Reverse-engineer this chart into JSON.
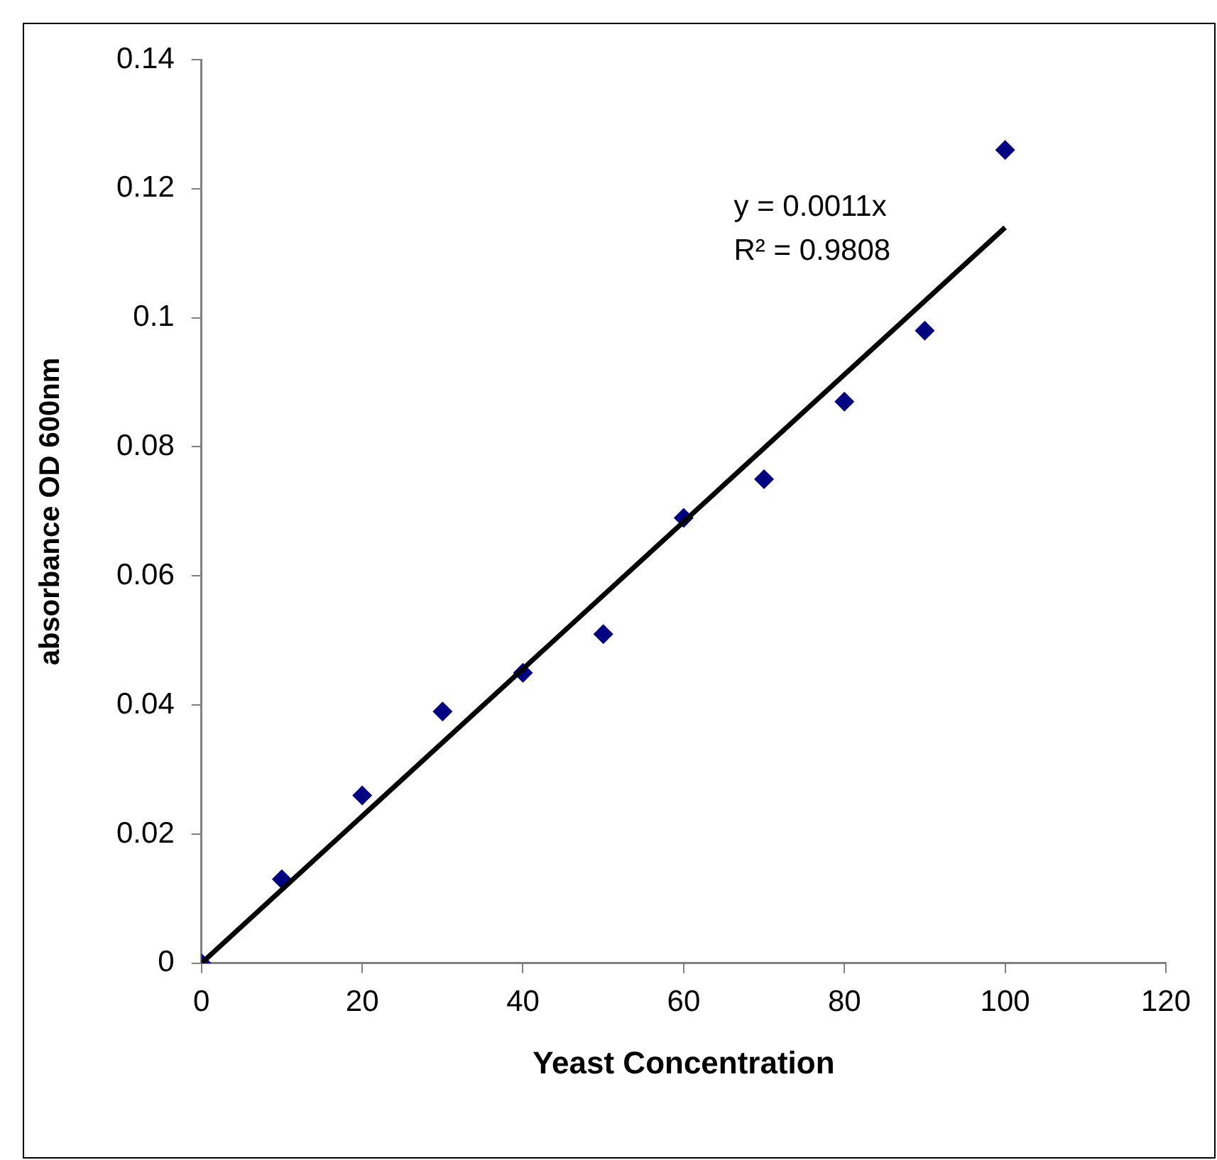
{
  "chart_data": {
    "type": "scatter",
    "xlabel": "Yeast Concentration",
    "ylabel": "absorbance OD 600nm",
    "annotations": [
      "y = 0.0011x",
      "R² = 0.9808"
    ],
    "xlim": [
      0,
      120
    ],
    "xticks": [
      0,
      20,
      40,
      60,
      80,
      100,
      120
    ],
    "ylim": [
      0,
      0.14
    ],
    "yticks": [
      0,
      0.02,
      0.04,
      0.06,
      0.08,
      0.1,
      0.12,
      0.14
    ],
    "grid": false,
    "legend": false,
    "series": [
      {
        "type": "scatter",
        "color": "#000080",
        "marker": "diamond",
        "x": [
          0,
          10,
          20,
          30,
          40,
          50,
          60,
          70,
          80,
          90,
          100
        ],
        "values": [
          0,
          0.013,
          0.026,
          0.039,
          0.045,
          0.051,
          0.069,
          0.075,
          0.087,
          0.098,
          0.126
        ]
      },
      {
        "type": "line",
        "color": "#000000",
        "marker": "none",
        "line_style": "solid",
        "x": [
          0,
          100
        ],
        "values": [
          0,
          0.114
        ]
      }
    ]
  }
}
